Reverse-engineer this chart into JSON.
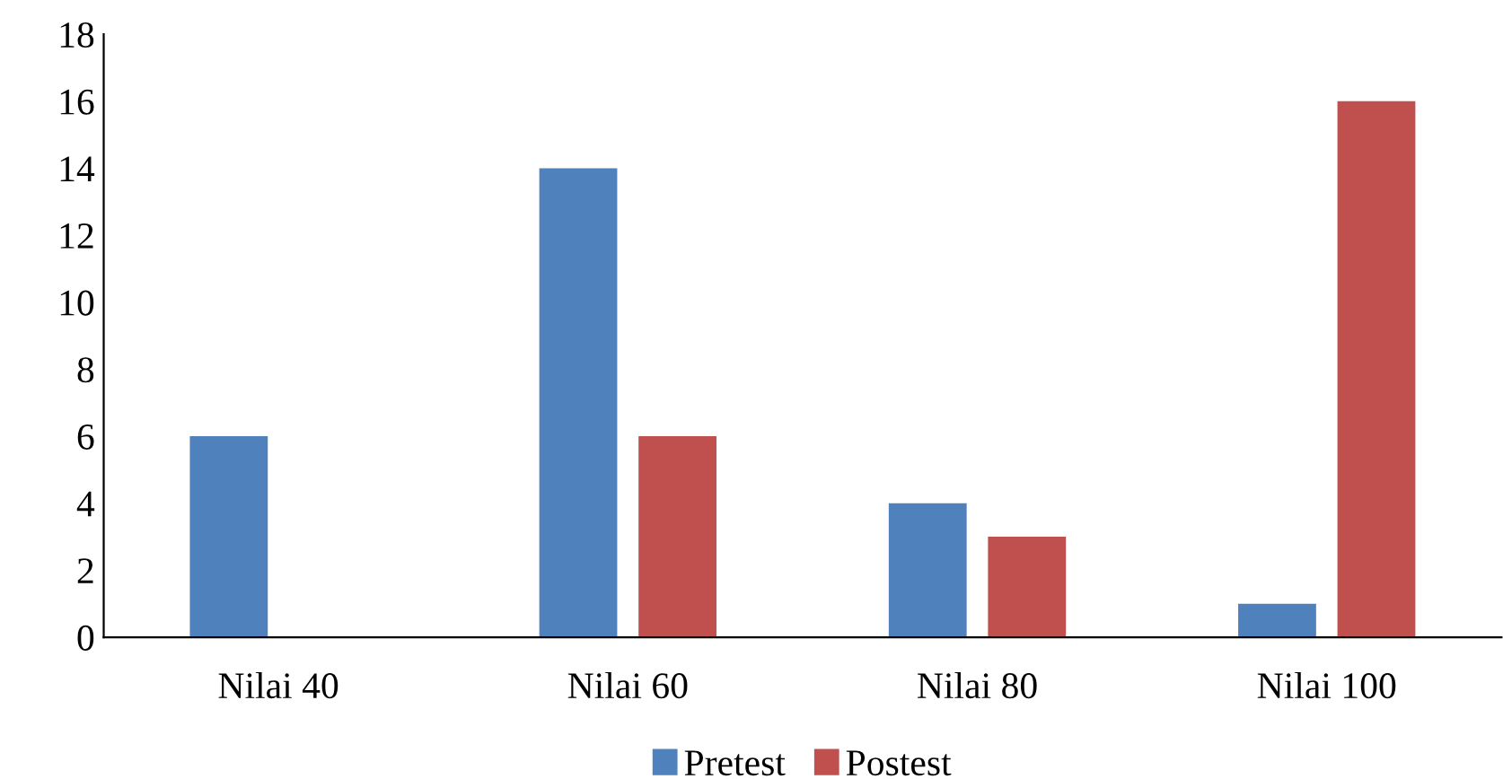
{
  "chart_data": {
    "type": "bar",
    "categories": [
      "Nilai 40",
      "Nilai 60",
      "Nilai 80",
      "Nilai 100"
    ],
    "series": [
      {
        "name": "Pretest",
        "color": "#4f81bd",
        "values": [
          6,
          14,
          4,
          1
        ]
      },
      {
        "name": "Postest",
        "color": "#c0504d",
        "values": [
          0,
          6,
          3,
          16
        ]
      }
    ],
    "ylim": [
      0,
      18
    ],
    "yticks": [
      0,
      2,
      4,
      6,
      8,
      10,
      12,
      14,
      16,
      18
    ],
    "grid": false,
    "legend": "bottom"
  }
}
